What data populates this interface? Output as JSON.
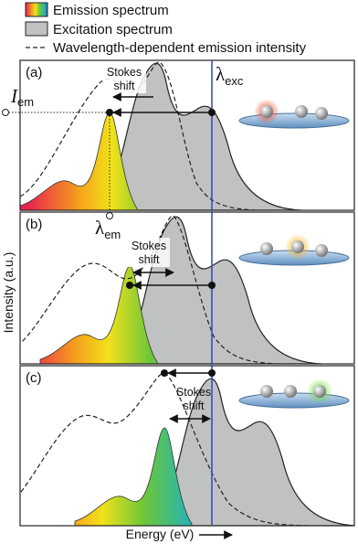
{
  "legend": [
    {
      "label": "Emission spectrum"
    },
    {
      "label": "Excitation spectrum"
    },
    {
      "label": "Wavelength-dependent emission intensity"
    }
  ],
  "panels": [
    {
      "label": "(a)",
      "stokes": [
        "Stokes",
        "shift"
      ]
    },
    {
      "label": "(b)",
      "stokes": [
        "Stokes",
        "shift"
      ]
    },
    {
      "label": "(c)",
      "stokes": [
        "Stokes",
        "shift"
      ]
    }
  ],
  "labels": {
    "lambda_exc": {
      "symbol": "λ",
      "sub": "exc"
    },
    "i_em": {
      "symbol": "I",
      "sub": "em"
    },
    "lambda_em": {
      "symbol": "λ",
      "sub": "em"
    }
  },
  "axes": {
    "y": "Intensity (a.u.)",
    "x": "Energy (eV)"
  }
}
